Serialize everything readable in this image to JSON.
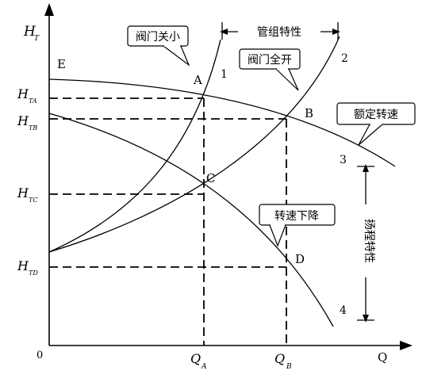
{
  "axes": {
    "y_main": "H",
    "y_sub": "T",
    "x_label": "Q",
    "origin": "0"
  },
  "left_labels": [
    {
      "main": "H",
      "sub": "TA"
    },
    {
      "main": "H",
      "sub": "TB"
    },
    {
      "main": "H",
      "sub": "TC"
    },
    {
      "main": "H",
      "sub": "TD"
    }
  ],
  "bottom_labels": [
    {
      "main": "Q",
      "sub": "A"
    },
    {
      "main": "Q",
      "sub": "B"
    }
  ],
  "points": {
    "A": "A",
    "B": "B",
    "C": "C",
    "D": "D",
    "E": "E"
  },
  "curve_numbers": {
    "c1": "1",
    "c2": "2",
    "c3": "3",
    "c4": "4"
  },
  "callouts": {
    "valve_close": "阀门关小",
    "valve_open": "阀门全开",
    "pipe_characteristic": "管组特性",
    "rated_speed": "额定转速",
    "speed_down": "转速下降",
    "head_characteristic": "扬程特性"
  }
}
